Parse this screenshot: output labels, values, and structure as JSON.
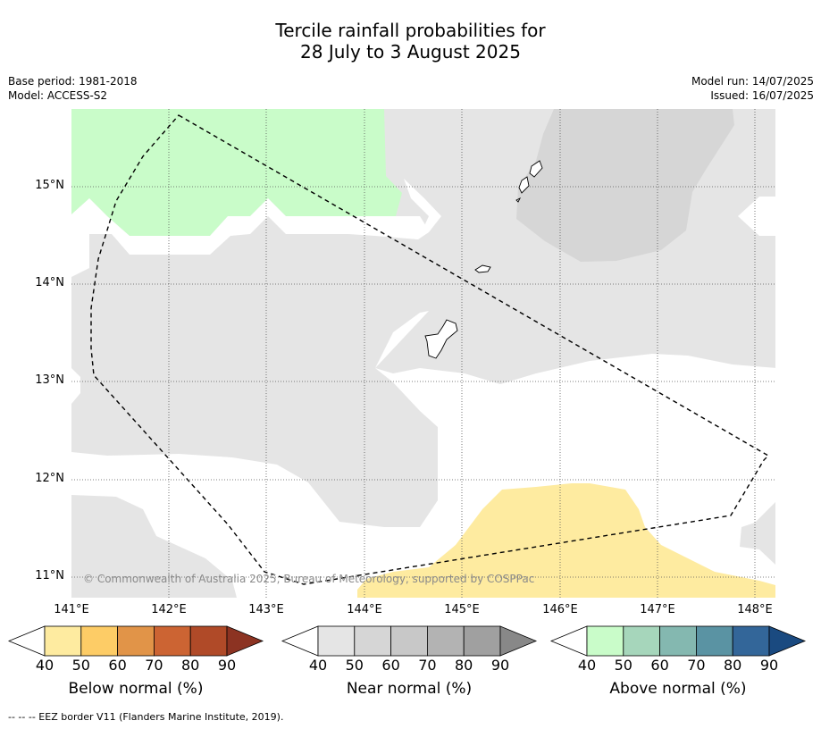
{
  "title": {
    "line1": "Tercile rainfall probabilities for",
    "line2": "28 July to 3 August 2025"
  },
  "meta": {
    "base_period": "Base period: 1981-2018",
    "model": "Model: ACCESS-S2",
    "model_run": "Model run: 14/07/2025",
    "issued": "Issued: 16/07/2025"
  },
  "map": {
    "lat_labels": [
      "15°N",
      "14°N",
      "13°N",
      "12°N",
      "11°N"
    ],
    "lon_labels": [
      "141°E",
      "142°E",
      "143°E",
      "144°E",
      "145°E",
      "146°E",
      "147°E",
      "148°E"
    ],
    "copyright": "© Commonwealth of Australia 2025, Bureau of Meteorology, supported by COSPPac",
    "colors": {
      "above_normal_50_60": "#c9fcc9",
      "near_normal_50_60": "#e5e5e5",
      "near_normal_60_70": "#d6d6d6",
      "below_normal_50_60": "#feeba0",
      "eez_border": "#000000"
    }
  },
  "colorbars": [
    {
      "title": "Below normal (%)",
      "ticks": [
        "40",
        "50",
        "60",
        "70",
        "80",
        "90"
      ],
      "colors": [
        "#ffffff",
        "#feeba0",
        "#fdcc66",
        "#e19448",
        "#cc6433",
        "#b04a28",
        "#8c3322"
      ]
    },
    {
      "title": "Near normal (%)",
      "ticks": [
        "40",
        "50",
        "60",
        "70",
        "80",
        "90"
      ],
      "colors": [
        "#ffffff",
        "#e5e5e5",
        "#d6d6d6",
        "#c8c8c8",
        "#b3b3b3",
        "#a0a0a0",
        "#888888"
      ]
    },
    {
      "title": "Above normal (%)",
      "ticks": [
        "40",
        "50",
        "60",
        "70",
        "80",
        "90"
      ],
      "colors": [
        "#ffffff",
        "#c9fcc9",
        "#a6d6bb",
        "#84b8b0",
        "#5a93a3",
        "#336699",
        "#1a4a80"
      ]
    }
  ],
  "footnote": "-- -- -- EEZ border V11 (Flanders Marine Institute, 2019)."
}
